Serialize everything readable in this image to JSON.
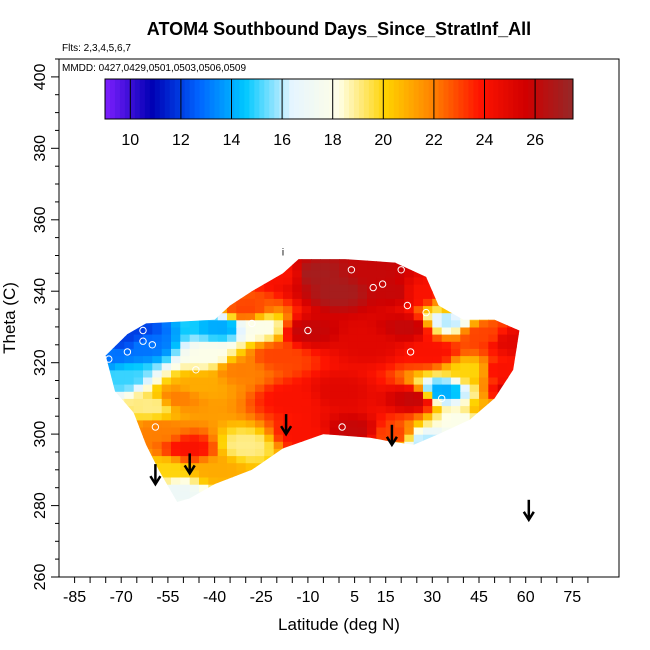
{
  "chart_data": {
    "type": "heatmap",
    "title": "ATOM4 Southbound Days_Since_StratInf_All",
    "flights_note": "Flts: 2,3,4,5,6,7",
    "dates_note": "MMDD: 0427,0429,0501,0503,0506,0509",
    "xlabel": "Latitude (deg N)",
    "ylabel": "Theta (C)",
    "xlim": [
      -90,
      90
    ],
    "ylim": [
      260,
      405
    ],
    "x_ticks": [
      -85,
      -70,
      -55,
      -40,
      -25,
      -10,
      5,
      15,
      30,
      45,
      60,
      75
    ],
    "y_ticks": [
      260,
      280,
      300,
      320,
      340,
      360,
      380,
      400
    ],
    "colorbar": {
      "min": 9,
      "max": 27.5,
      "ticks": [
        10,
        12,
        14,
        16,
        18,
        20,
        22,
        24,
        26
      ],
      "colors": [
        "#7f1fff",
        "#0000b4",
        "#0064ff",
        "#00c8ff",
        "#e6f5ff",
        "#ffffe6",
        "#ffd200",
        "#ff8200",
        "#ff1400",
        "#d00000",
        "#962828"
      ]
    },
    "field": [
      {
        "lat": -74,
        "theta": 322,
        "value": 13
      },
      {
        "lat": -70,
        "theta": 316,
        "value": 15
      },
      {
        "lat": -70,
        "theta": 327,
        "value": 12
      },
      {
        "lat": -66,
        "theta": 329,
        "value": 12
      },
      {
        "lat": -62,
        "theta": 325,
        "value": 13
      },
      {
        "lat": -60,
        "theta": 308,
        "value": 19
      },
      {
        "lat": -58,
        "theta": 301,
        "value": 22
      },
      {
        "lat": -55,
        "theta": 290,
        "value": 20
      },
      {
        "lat": -52,
        "theta": 284,
        "value": 17
      },
      {
        "lat": -52,
        "theta": 310,
        "value": 22
      },
      {
        "lat": -48,
        "theta": 296,
        "value": 24
      },
      {
        "lat": -45,
        "theta": 314,
        "value": 21
      },
      {
        "lat": -42,
        "theta": 322,
        "value": 18
      },
      {
        "lat": -40,
        "theta": 290,
        "value": 21
      },
      {
        "lat": -38,
        "theta": 330,
        "value": 14
      },
      {
        "lat": -32,
        "theta": 318,
        "value": 22
      },
      {
        "lat": -30,
        "theta": 297,
        "value": 19
      },
      {
        "lat": -30,
        "theta": 335,
        "value": 23
      },
      {
        "lat": -25,
        "theta": 330,
        "value": 18
      },
      {
        "lat": -20,
        "theta": 322,
        "value": 23
      },
      {
        "lat": -18,
        "theta": 345,
        "value": 24
      },
      {
        "lat": -15,
        "theta": 310,
        "value": 24
      },
      {
        "lat": -12,
        "theta": 300,
        "value": 24
      },
      {
        "lat": -10,
        "theta": 329,
        "value": 26
      },
      {
        "lat": -8,
        "theta": 345,
        "value": 27
      },
      {
        "lat": 0,
        "theta": 312,
        "value": 25
      },
      {
        "lat": 0,
        "theta": 340,
        "value": 27
      },
      {
        "lat": 5,
        "theta": 301,
        "value": 26
      },
      {
        "lat": 10,
        "theta": 325,
        "value": 25
      },
      {
        "lat": 12,
        "theta": 345,
        "value": 26
      },
      {
        "lat": 17,
        "theta": 300,
        "value": 23
      },
      {
        "lat": 18,
        "theta": 340,
        "value": 26
      },
      {
        "lat": 22,
        "theta": 330,
        "value": 26
      },
      {
        "lat": 24,
        "theta": 310,
        "value": 26
      },
      {
        "lat": 26,
        "theta": 340,
        "value": 24
      },
      {
        "lat": 28,
        "theta": 298,
        "value": 16
      },
      {
        "lat": 30,
        "theta": 323,
        "value": 24
      },
      {
        "lat": 33,
        "theta": 312,
        "value": 14
      },
      {
        "lat": 35,
        "theta": 332,
        "value": 16
      },
      {
        "lat": 38,
        "theta": 336,
        "value": 21
      },
      {
        "lat": 40,
        "theta": 304,
        "value": 18
      },
      {
        "lat": 42,
        "theta": 318,
        "value": 20
      },
      {
        "lat": 46,
        "theta": 328,
        "value": 23
      },
      {
        "lat": 48,
        "theta": 306,
        "value": 21
      },
      {
        "lat": 52,
        "theta": 318,
        "value": 24
      },
      {
        "lat": 56,
        "theta": 326,
        "value": 25
      },
      {
        "lat": 58,
        "theta": 312,
        "value": 26
      }
    ],
    "coverage_edge": [
      [
        -75,
        322
      ],
      [
        -68,
        328
      ],
      [
        -62,
        331
      ],
      [
        -40,
        332
      ],
      [
        -35,
        336
      ],
      [
        -28,
        340
      ],
      [
        -18,
        345
      ],
      [
        -13,
        349
      ],
      [
        2,
        349
      ],
      [
        18,
        348
      ],
      [
        28,
        344
      ],
      [
        32,
        336
      ],
      [
        40,
        332
      ],
      [
        50,
        332
      ],
      [
        58,
        329
      ],
      [
        56,
        318
      ],
      [
        50,
        310
      ],
      [
        42,
        304
      ],
      [
        32,
        300
      ],
      [
        24,
        297
      ],
      [
        16,
        298
      ],
      [
        10,
        299
      ],
      [
        -5,
        300
      ],
      [
        -18,
        296
      ],
      [
        -28,
        290
      ],
      [
        -40,
        286
      ],
      [
        -48,
        282
      ],
      [
        -52,
        281
      ],
      [
        -58,
        290
      ],
      [
        -62,
        297
      ],
      [
        -66,
        306
      ],
      [
        -72,
        312
      ],
      [
        -75,
        322
      ]
    ],
    "sample_points": [
      {
        "lat": -74,
        "theta": 321
      },
      {
        "lat": -68,
        "theta": 323
      },
      {
        "lat": -63,
        "theta": 326
      },
      {
        "lat": -60,
        "theta": 325
      },
      {
        "lat": -63,
        "theta": 329
      },
      {
        "lat": -59,
        "theta": 302
      },
      {
        "lat": -46,
        "theta": 318
      },
      {
        "lat": -28,
        "theta": 331
      },
      {
        "lat": -10,
        "theta": 329
      },
      {
        "lat": 1,
        "theta": 302
      },
      {
        "lat": 4,
        "theta": 346
      },
      {
        "lat": 11,
        "theta": 341
      },
      {
        "lat": 14,
        "theta": 342
      },
      {
        "lat": 20,
        "theta": 346
      },
      {
        "lat": 22,
        "theta": 336
      },
      {
        "lat": 23,
        "theta": 323
      },
      {
        "lat": 28,
        "theta": 334
      },
      {
        "lat": 33,
        "theta": 310
      },
      {
        "lat": 15,
        "theta": 297
      },
      {
        "lat": 60,
        "theta": 329
      }
    ],
    "flight_markers": [
      {
        "lat": -59,
        "theta": 286
      },
      {
        "lat": -48,
        "theta": 289
      },
      {
        "lat": -17,
        "theta": 300
      },
      {
        "lat": 17,
        "theta": 297
      },
      {
        "lat": 61,
        "theta": 276
      }
    ],
    "small_label": {
      "text": "i",
      "lat": -18,
      "theta": 350
    }
  }
}
